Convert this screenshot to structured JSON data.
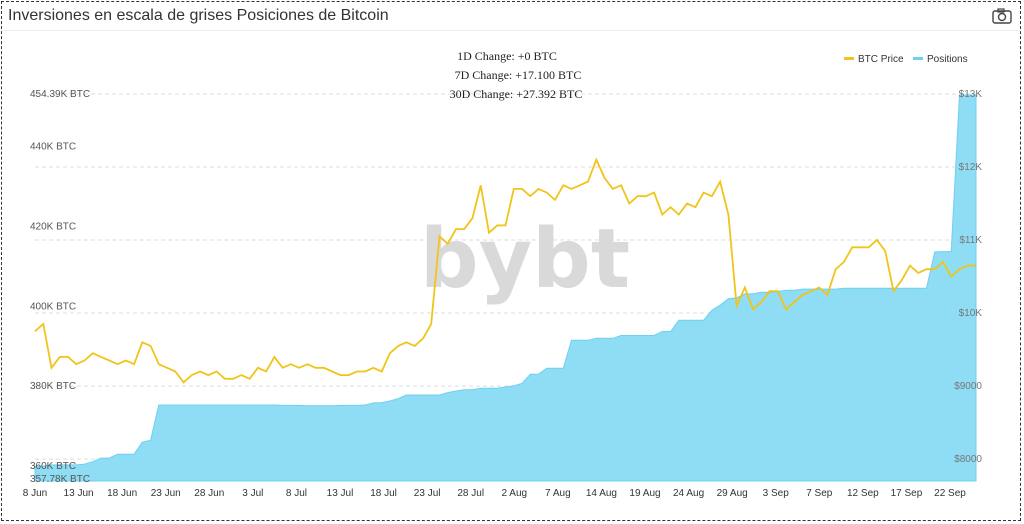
{
  "header": {
    "title": "Inversiones en escala de grises Posiciones de Bitcoin",
    "camera_icon": "camera-icon"
  },
  "stats": [
    "1D Change: +0 BTC",
    "7D Change: +17.100 BTC",
    "30D Change: +27.392 BTC"
  ],
  "watermark": "bybt",
  "colors": {
    "price": "#f0c419",
    "positions": "#8fdcf5",
    "positions_line": "#6fcff2"
  },
  "chart_data": {
    "type": "area",
    "x_ticks": [
      "8 Jun",
      "13 Jun",
      "18 Jun",
      "23 Jun",
      "28 Jun",
      "3 Jul",
      "8 Jul",
      "13 Jul",
      "18 Jul",
      "23 Jul",
      "28 Jul",
      "2 Aug",
      "7 Aug",
      "14 Aug",
      "19 Aug",
      "24 Aug",
      "29 Aug",
      "3 Sep",
      "7 Sep",
      "12 Sep",
      "17 Sep",
      "22 Sep"
    ],
    "y_left_ticks": [
      "454.39K BTC",
      "440K BTC",
      "420K BTC",
      "400K BTC",
      "380K BTC",
      "360K BTC",
      "357.78K BTC"
    ],
    "y_right_ticks": [
      "$13K",
      "$12K",
      "$11K",
      "$10K",
      "$9000",
      "$8000"
    ],
    "y_left_range": [
      357780,
      454390
    ],
    "y_right_range": [
      7700,
      13000
    ],
    "legend": {
      "placement": "top-right",
      "items": [
        "BTC Price",
        "Positions"
      ]
    },
    "series": [
      {
        "name": "Positions",
        "axis": "left",
        "values": [
          361500,
          361500,
          361800,
          361800,
          361800,
          361800,
          362000,
          362600,
          363500,
          363500,
          364500,
          364500,
          364500,
          367500,
          368000,
          376800,
          376800,
          376800,
          376800,
          376800,
          376800,
          376800,
          376800,
          376800,
          376800,
          376800,
          376800,
          376800,
          376800,
          376800,
          376700,
          376700,
          376700,
          376600,
          376600,
          376600,
          376600,
          376700,
          376700,
          376700,
          376800,
          377300,
          377400,
          377800,
          378400,
          379300,
          379300,
          379300,
          379300,
          379300,
          379900,
          380300,
          380600,
          380600,
          381000,
          381000,
          381000,
          381300,
          381600,
          382200,
          384500,
          384500,
          386000,
          386000,
          386000,
          393000,
          393000,
          393000,
          393500,
          393500,
          393500,
          394200,
          394200,
          394200,
          394200,
          394200,
          395200,
          395200,
          398000,
          398000,
          398000,
          398000,
          400500,
          401800,
          403400,
          403600,
          404600,
          404600,
          405000,
          405000,
          405200,
          405500,
          405500,
          405800,
          405800,
          405800,
          405800,
          405800,
          406000,
          406000,
          406000,
          406000,
          406000,
          406000,
          406000,
          406000,
          406000,
          406000,
          406000,
          415100,
          415200,
          415200,
          454390,
          454390,
          454390
        ]
      },
      {
        "name": "BTC Price",
        "axis": "right",
        "values": [
          9750,
          9850,
          9250,
          9400,
          9400,
          9300,
          9350,
          9450,
          9400,
          9350,
          9300,
          9350,
          9300,
          9600,
          9550,
          9300,
          9250,
          9200,
          9050,
          9150,
          9200,
          9150,
          9200,
          9100,
          9100,
          9150,
          9100,
          9250,
          9200,
          9400,
          9250,
          9300,
          9250,
          9300,
          9250,
          9250,
          9200,
          9150,
          9150,
          9200,
          9200,
          9250,
          9200,
          9450,
          9550,
          9600,
          9550,
          9650,
          9850,
          11050,
          10950,
          11150,
          11150,
          11300,
          11750,
          11100,
          11200,
          11200,
          11700,
          11700,
          11600,
          11700,
          11650,
          11550,
          11750,
          11700,
          11750,
          11800,
          12100,
          11850,
          11700,
          11750,
          11500,
          11600,
          11600,
          11650,
          11350,
          11450,
          11350,
          11500,
          11450,
          11650,
          11600,
          11800,
          11350,
          10100,
          10350,
          10050,
          10150,
          10300,
          10300,
          10050,
          10150,
          10250,
          10300,
          10350,
          10250,
          10600,
          10700,
          10900,
          10900,
          10900,
          11000,
          10850,
          10300,
          10450,
          10650,
          10550,
          10600,
          10600,
          10700,
          10500,
          10600,
          10650,
          10650
        ]
      }
    ]
  }
}
